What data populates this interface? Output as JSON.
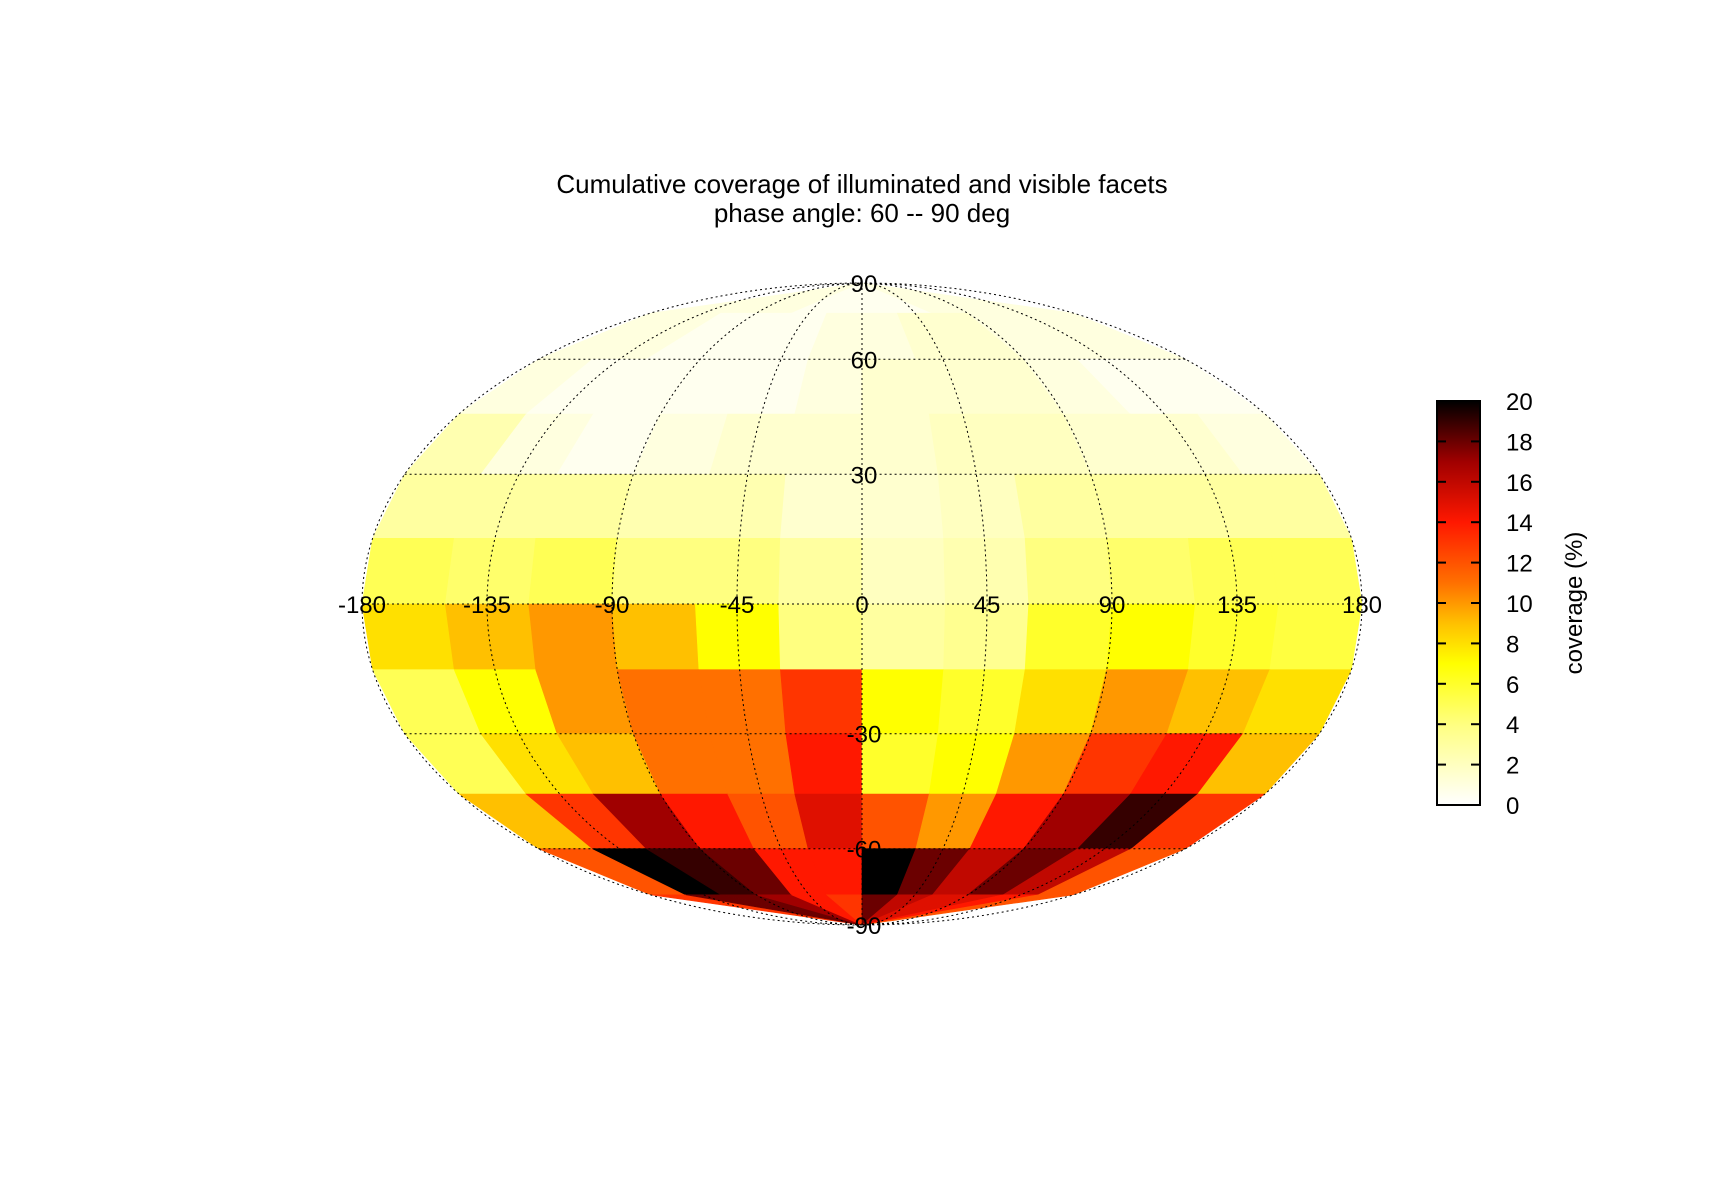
{
  "chart_data": {
    "type": "heatmap",
    "projection": "mollweide",
    "title": "Cumulative coverage of illuminated and visible facets",
    "subtitle": "phase angle:  60 --  90 deg",
    "lon_ticks": [
      -180,
      -135,
      -90,
      -45,
      0,
      45,
      90,
      135,
      180
    ],
    "lat_ticks": [
      90,
      60,
      30,
      -30,
      -60,
      -90
    ],
    "lon_range": [
      -180,
      180
    ],
    "lat_range": [
      -90,
      90
    ],
    "grid": true,
    "colorbar": {
      "label": "coverage (%)",
      "range": [
        0,
        20
      ],
      "ticks": [
        0,
        2,
        4,
        6,
        8,
        10,
        12,
        14,
        16,
        18,
        20
      ],
      "colormap": "hot (white-yellow-orange-red-black)"
    },
    "cell_size_deg": [
      30,
      15
    ],
    "cell_lon_starts": [
      -180,
      -150,
      -120,
      -90,
      -60,
      -30,
      0,
      30,
      60,
      90,
      120,
      150
    ],
    "cell_lat_starts": [
      75,
      60,
      45,
      30,
      15,
      0,
      -15,
      -30,
      -45,
      -60,
      -75,
      -90
    ],
    "coverage_grid": [
      [
        1.0,
        1.0,
        1.0,
        1.0,
        0.5,
        0.5,
        0.5,
        0.5,
        1.0,
        1.0,
        1.0,
        1.0
      ],
      [
        1.0,
        1.0,
        0.5,
        0.5,
        0.5,
        1.0,
        1.0,
        1.5,
        1.5,
        1.0,
        1.0,
        1.0
      ],
      [
        1.0,
        0.5,
        0.5,
        0.5,
        0.5,
        1.0,
        1.5,
        1.5,
        1.5,
        1.0,
        0.5,
        0.5
      ],
      [
        2.5,
        1.0,
        0.5,
        1.0,
        1.5,
        1.5,
        1.5,
        2.0,
        2.0,
        1.5,
        1.5,
        1.0
      ],
      [
        3.0,
        3.0,
        3.0,
        2.5,
        2.5,
        1.5,
        1.5,
        2.0,
        3.0,
        3.0,
        3.0,
        3.0
      ],
      [
        5.0,
        4.5,
        5.0,
        4.0,
        4.0,
        3.0,
        2.0,
        2.5,
        4.0,
        4.5,
        5.0,
        5.0
      ],
      [
        8.0,
        9.0,
        10.0,
        9.0,
        7.0,
        4.0,
        3.0,
        3.5,
        6.0,
        7.0,
        6.0,
        5.5
      ],
      [
        5.0,
        7.0,
        10.0,
        11.0,
        11.0,
        13.0,
        7.0,
        6.0,
        8.0,
        10.0,
        9.0,
        8.0
      ],
      [
        5.0,
        8.0,
        9.0,
        11.0,
        11.0,
        14.0,
        6.0,
        7.0,
        10.0,
        13.0,
        14.0,
        9.0
      ],
      [
        9.0,
        13.0,
        17.0,
        14.0,
        12.0,
        15.0,
        12.0,
        10.0,
        14.0,
        17.0,
        19.0,
        13.0
      ],
      [
        12.0,
        20.0,
        19.0,
        18.0,
        14.0,
        14.0,
        20.0,
        18.0,
        16.0,
        18.0,
        16.0,
        12.0
      ],
      [
        13.0,
        18.0,
        18.0,
        17.0,
        14.0,
        13.0,
        18.0,
        16.0,
        15.0,
        15.0,
        14.0,
        12.0
      ]
    ]
  }
}
